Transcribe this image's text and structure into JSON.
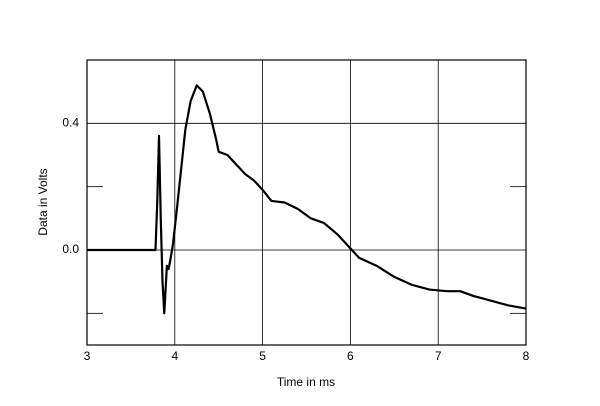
{
  "chart_data": {
    "type": "line",
    "xlabel": "Time in ms",
    "ylabel": "Data in Volts",
    "xlim": [
      3,
      8
    ],
    "xticks": [
      3,
      4,
      5,
      6,
      7,
      8
    ],
    "ylim": [
      -0.3,
      0.6
    ],
    "yticks": [
      {
        "value": 0,
        "label": "0.0"
      },
      0.4
    ],
    "yminor_ticks": [
      -0.2,
      0.2
    ],
    "grid": true,
    "series": [
      {
        "color": "#000000",
        "x": [
          3.0,
          3.78,
          3.8,
          3.82,
          3.84,
          3.86,
          3.88,
          3.91,
          3.93,
          3.95,
          3.98,
          4.02,
          4.07,
          4.12,
          4.18,
          4.25,
          4.32,
          4.4,
          4.47,
          4.5,
          4.6,
          4.7,
          4.8,
          4.9,
          5.0,
          5.1,
          5.25,
          5.4,
          5.55,
          5.7,
          5.85,
          6.0,
          6.1,
          6.3,
          6.5,
          6.7,
          6.9,
          7.1,
          7.25,
          7.4,
          7.6,
          7.8,
          8.0
        ],
        "values": [
          0,
          0,
          0.15,
          0.36,
          0.1,
          -0.1,
          -0.2,
          -0.05,
          -0.06,
          -0.03,
          0.02,
          0.12,
          0.25,
          0.38,
          0.47,
          0.52,
          0.5,
          0.43,
          0.35,
          0.31,
          0.3,
          0.27,
          0.24,
          0.22,
          0.19,
          0.155,
          0.15,
          0.13,
          0.1,
          0.085,
          0.05,
          0.005,
          -0.025,
          -0.05,
          -0.085,
          -0.11,
          -0.125,
          -0.13,
          -0.13,
          -0.145,
          -0.16,
          -0.175,
          -0.185
        ]
      }
    ]
  }
}
